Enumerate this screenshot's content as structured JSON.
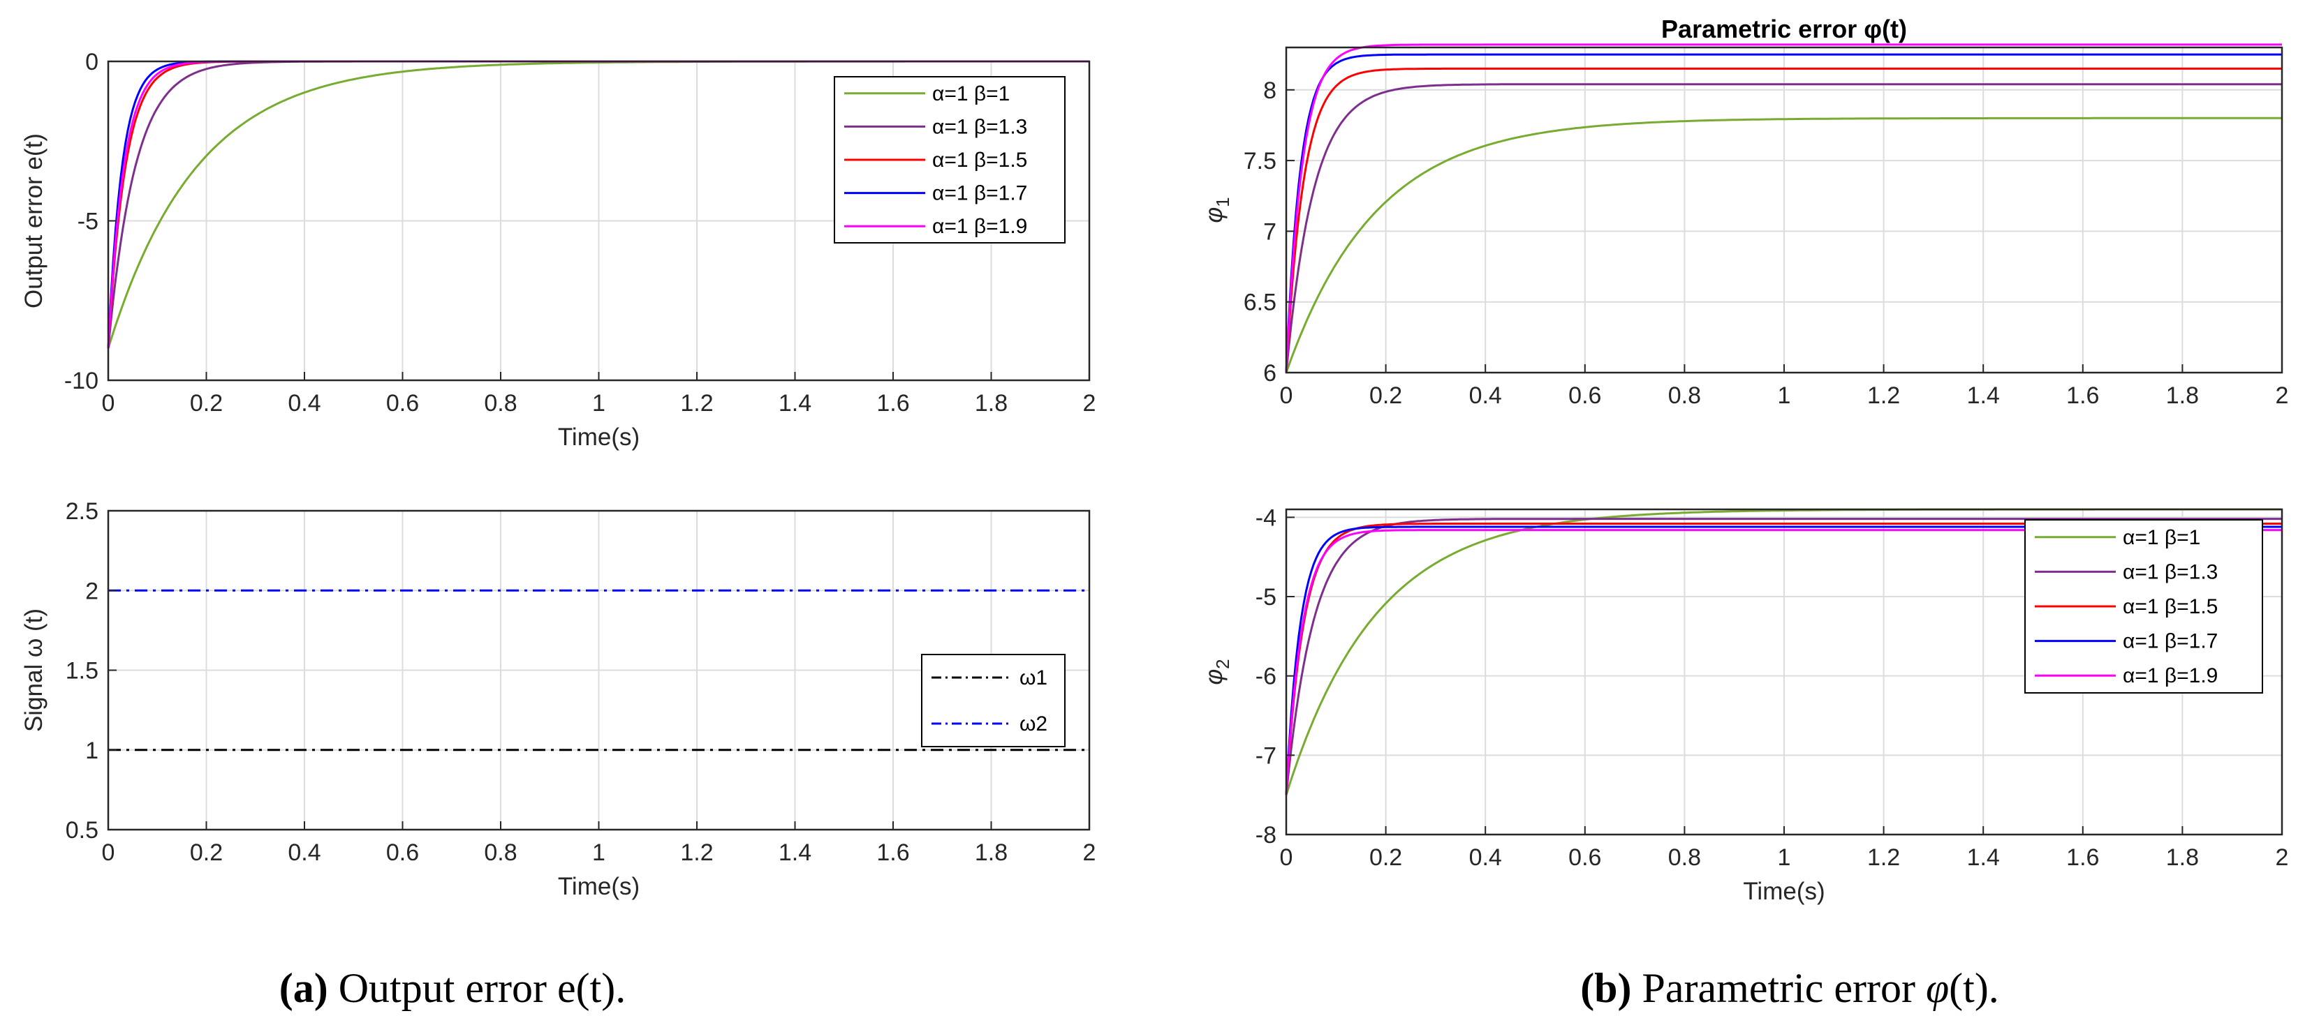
{
  "captions": [
    {
      "bold": "(a)",
      "rest": " Output error e(t)."
    },
    {
      "bold": "(b)",
      "rest": " Parametric error ",
      "symbol": "φ",
      "tail": "(t)."
    }
  ],
  "colors": {
    "green": "#77ac30",
    "purple": "#7e2f8e",
    "red": "#ff0000",
    "blue": "#0000ff",
    "magenta": "#ff00ff",
    "black": "#000000",
    "axis": "#262626",
    "grid": "#dcdcdc"
  },
  "chart_data": [
    {
      "id": "e",
      "type": "line",
      "title": "",
      "xlabel": "Time(s)",
      "ylabel": "Output error e(t)",
      "xlim": [
        0,
        2
      ],
      "ylim": [
        -10,
        0
      ],
      "xticks": [
        0,
        0.2,
        0.4,
        0.6,
        0.8,
        1,
        1.2,
        1.4,
        1.6,
        1.8,
        2
      ],
      "yticks": [
        -10,
        -5,
        0
      ],
      "grid": true,
      "legend": "top-right",
      "series": [
        {
          "name": "α=1 β=1",
          "beta": 1.0,
          "color": "green",
          "start": -9,
          "end": 0,
          "tau": 0.18,
          "style": "solid"
        },
        {
          "name": "α=1 β=1.3",
          "beta": 1.3,
          "color": "purple",
          "start": -9,
          "end": 0,
          "tau": 0.055,
          "style": "solid"
        },
        {
          "name": "α=1 β=1.5",
          "beta": 1.5,
          "color": "red",
          "start": -9,
          "end": 0,
          "tau": 0.035,
          "style": "solid"
        },
        {
          "name": "α=1 β=1.7",
          "beta": 1.7,
          "color": "blue",
          "start": -9,
          "end": 0,
          "tau": 0.028,
          "style": "solid"
        },
        {
          "name": "α=1 β=1.9",
          "beta": 1.9,
          "color": "magenta",
          "start": -9,
          "end": 0,
          "tau": 0.032,
          "style": "solid"
        }
      ]
    },
    {
      "id": "phi1",
      "type": "line",
      "title": "Parametric error φ(t)",
      "xlabel": "",
      "ylabel": "φ1",
      "xlim": [
        0,
        2
      ],
      "ylim": [
        6,
        8.3
      ],
      "xticks": [
        0,
        0.2,
        0.4,
        0.6,
        0.8,
        1,
        1.2,
        1.4,
        1.6,
        1.8,
        2
      ],
      "yticks": [
        6,
        6.5,
        7,
        7.5,
        8
      ],
      "grid": true,
      "legend": "none",
      "series": [
        {
          "name": "α=1 β=1",
          "beta": 1.0,
          "color": "green",
          "start": 6,
          "end": 7.8,
          "tau": 0.18,
          "style": "solid"
        },
        {
          "name": "α=1 β=1.3",
          "beta": 1.3,
          "color": "purple",
          "start": 6,
          "end": 8.04,
          "tau": 0.055,
          "style": "solid"
        },
        {
          "name": "α=1 β=1.5",
          "beta": 1.5,
          "color": "red",
          "start": 6,
          "end": 8.15,
          "tau": 0.035,
          "style": "solid"
        },
        {
          "name": "α=1 β=1.7",
          "beta": 1.7,
          "color": "blue",
          "start": 6,
          "end": 8.25,
          "tau": 0.028,
          "style": "solid"
        },
        {
          "name": "α=1 β=1.9",
          "beta": 1.9,
          "color": "magenta",
          "start": 6,
          "end": 8.32,
          "tau": 0.032,
          "style": "solid"
        }
      ]
    },
    {
      "id": "omega",
      "type": "line",
      "title": "",
      "xlabel": "Time(s)",
      "ylabel": "Signal ω (t)",
      "xlim": [
        0,
        2
      ],
      "ylim": [
        0.5,
        2.5
      ],
      "xticks": [
        0,
        0.2,
        0.4,
        0.6,
        0.8,
        1,
        1.2,
        1.4,
        1.6,
        1.8,
        2
      ],
      "yticks": [
        0.5,
        1,
        1.5,
        2,
        2.5
      ],
      "grid": true,
      "legend": "right",
      "series": [
        {
          "name": "ω1",
          "color": "black",
          "start": 1,
          "end": 1,
          "tau": 0,
          "style": "dashdot"
        },
        {
          "name": "ω2",
          "color": "blue",
          "start": 2,
          "end": 2,
          "tau": 0,
          "style": "dashdot"
        }
      ]
    },
    {
      "id": "phi2",
      "type": "line",
      "title": "",
      "xlabel": "Time(s)",
      "ylabel": "φ2",
      "xlim": [
        0,
        2
      ],
      "ylim": [
        -8,
        -3.9
      ],
      "xticks": [
        0,
        0.2,
        0.4,
        0.6,
        0.8,
        1,
        1.2,
        1.4,
        1.6,
        1.8,
        2
      ],
      "yticks": [
        -8,
        -7,
        -6,
        -5,
        -4
      ],
      "grid": true,
      "legend": "top-right",
      "series": [
        {
          "name": "α=1 β=1",
          "beta": 1.0,
          "color": "green",
          "start": -7.5,
          "end": -3.9,
          "tau": 0.18,
          "style": "solid"
        },
        {
          "name": "α=1 β=1.3",
          "beta": 1.3,
          "color": "purple",
          "start": -7.5,
          "end": -4.02,
          "tau": 0.055,
          "style": "solid"
        },
        {
          "name": "α=1 β=1.5",
          "beta": 1.5,
          "color": "red",
          "start": -7.5,
          "end": -4.08,
          "tau": 0.035,
          "style": "solid"
        },
        {
          "name": "α=1 β=1.7",
          "beta": 1.7,
          "color": "blue",
          "start": -7.5,
          "end": -4.12,
          "tau": 0.028,
          "style": "solid"
        },
        {
          "name": "α=1 β=1.9",
          "beta": 1.9,
          "color": "magenta",
          "start": -7.5,
          "end": -4.16,
          "tau": 0.032,
          "style": "solid"
        }
      ]
    }
  ]
}
